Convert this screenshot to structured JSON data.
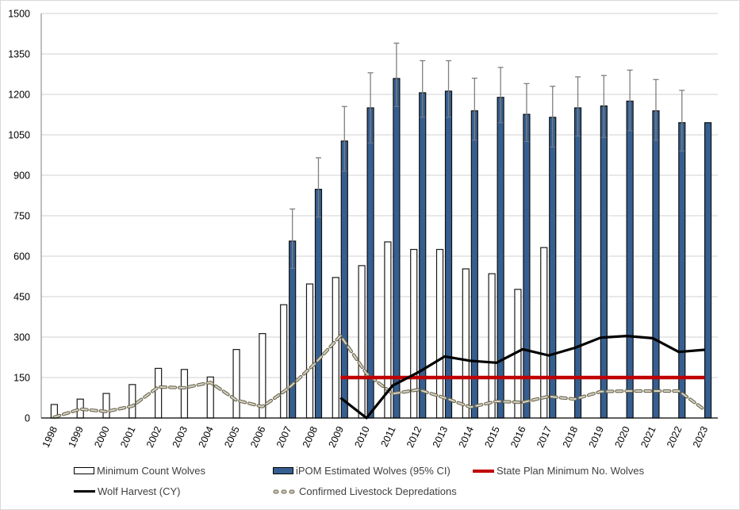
{
  "chart_data": {
    "type": "bar",
    "title": "",
    "xlabel": "",
    "ylabel": "",
    "ylim": [
      0,
      1500
    ],
    "yticks": [
      0,
      150,
      300,
      450,
      600,
      750,
      900,
      1050,
      1200,
      1350,
      1500
    ],
    "grid": true,
    "legend_position": "bottom",
    "categories": [
      "1998",
      "1999",
      "2000",
      "2001",
      "2002",
      "2003",
      "2004",
      "2005",
      "2006",
      "2007",
      "2008",
      "2009",
      "2010",
      "2011",
      "2012",
      "2013",
      "2014",
      "2015",
      "2016",
      "2017",
      "2018",
      "2019",
      "2020",
      "2021",
      "2022",
      "2023"
    ],
    "series": [
      {
        "name": "Minimum Count Wolves",
        "kind": "bar",
        "color": "#ffffff",
        "values": [
          50,
          70,
          91,
          124,
          184,
          180,
          152,
          254,
          313,
          420,
          497,
          521,
          565,
          653,
          625,
          625,
          553,
          535,
          477,
          632,
          null,
          null,
          null,
          null,
          null,
          null
        ]
      },
      {
        "name": "iPOM Estimated Wolves (95% CI)",
        "kind": "bar",
        "color": "#355f91",
        "values": [
          null,
          null,
          null,
          null,
          null,
          null,
          null,
          null,
          null,
          656,
          848,
          1027,
          1150,
          1259,
          1206,
          1212,
          1139,
          1189,
          1126,
          1115,
          1150,
          1157,
          1175,
          1139,
          1095,
          1095
        ],
        "ci_lower": [
          null,
          null,
          null,
          null,
          null,
          null,
          null,
          null,
          null,
          555,
          745,
          915,
          1020,
          1155,
          1115,
          1115,
          1030,
          1095,
          1025,
          1005,
          1045,
          1040,
          1065,
          1030,
          990,
          null
        ],
        "ci_upper": [
          null,
          null,
          null,
          null,
          null,
          null,
          null,
          null,
          null,
          775,
          965,
          1155,
          1280,
          1390,
          1325,
          1325,
          1260,
          1300,
          1240,
          1230,
          1265,
          1270,
          1290,
          1255,
          1215,
          null
        ]
      },
      {
        "name": "State Plan Minimum No. Wolves",
        "kind": "line",
        "color": "#c00000",
        "values": [
          null,
          null,
          null,
          null,
          null,
          null,
          null,
          null,
          null,
          null,
          null,
          150,
          150,
          150,
          150,
          150,
          150,
          150,
          150,
          150,
          150,
          150,
          150,
          150,
          150,
          150
        ]
      },
      {
        "name": "Wolf Harvest (CY)",
        "kind": "line",
        "color": "#000000",
        "values": [
          null,
          null,
          null,
          null,
          null,
          null,
          null,
          null,
          null,
          null,
          null,
          75,
          0,
          120,
          170,
          228,
          212,
          205,
          255,
          232,
          260,
          298,
          304,
          296,
          245,
          253
        ]
      },
      {
        "name": "Confirmed Livestock Depredations",
        "kind": "line-dashed",
        "color": "#6b6650",
        "values": [
          3,
          33,
          24,
          44,
          115,
          112,
          132,
          66,
          42,
          110,
          200,
          305,
          165,
          90,
          105,
          75,
          40,
          62,
          58,
          80,
          70,
          98,
          100,
          100,
          100,
          30
        ]
      }
    ]
  }
}
